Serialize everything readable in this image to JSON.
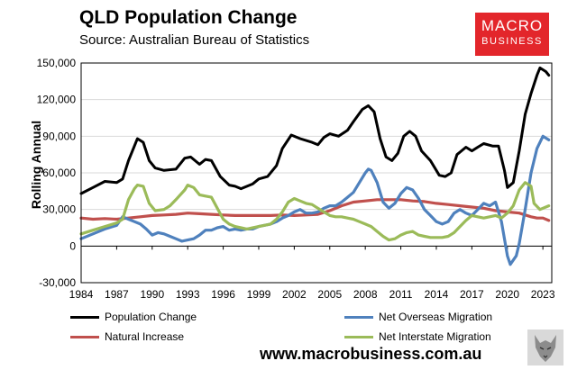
{
  "header": {
    "title": "QLD Population Change",
    "subtitle": "Source: Australian Bureau of Statistics"
  },
  "logo": {
    "line1": "MACRO",
    "line2": "BUSINESS"
  },
  "footer": {
    "website": "www.macrobusiness.com.au"
  },
  "chart_data": {
    "type": "line",
    "title": "QLD Population Change",
    "ylabel": "Rolling Annual",
    "xlabel": "",
    "xlim": [
      1984,
      2023.75
    ],
    "ylim": [
      -30000,
      150000
    ],
    "y_ticks": [
      -30000,
      0,
      30000,
      60000,
      90000,
      120000,
      150000
    ],
    "y_tick_labels": [
      "-30,000",
      "0",
      "30,000",
      "60,000",
      "90,000",
      "120,000",
      "150,000"
    ],
    "x_ticks": [
      1984,
      1987,
      1990,
      1993,
      1996,
      1999,
      2002,
      2005,
      2008,
      2011,
      2014,
      2017,
      2020,
      2023
    ],
    "x_tick_labels": [
      "1984",
      "1987",
      "1990",
      "1993",
      "1996",
      "1999",
      "2002",
      "2005",
      "2008",
      "2011",
      "2014",
      "2017",
      "2020",
      "2023"
    ],
    "grid": true,
    "legend_position": "bottom",
    "series": [
      {
        "name": "Population Change",
        "color": "#000000",
        "points": [
          [
            1984,
            43000
          ],
          [
            1985,
            48000
          ],
          [
            1986,
            53000
          ],
          [
            1987,
            52000
          ],
          [
            1987.5,
            55000
          ],
          [
            1988,
            70000
          ],
          [
            1988.5,
            82000
          ],
          [
            1988.75,
            88000
          ],
          [
            1989.25,
            85000
          ],
          [
            1989.75,
            70000
          ],
          [
            1990.25,
            64000
          ],
          [
            1991,
            62000
          ],
          [
            1992,
            63000
          ],
          [
            1992.75,
            72000
          ],
          [
            1993.25,
            73000
          ],
          [
            1994,
            67000
          ],
          [
            1994.5,
            71000
          ],
          [
            1995,
            70000
          ],
          [
            1995.75,
            57000
          ],
          [
            1996.5,
            50000
          ],
          [
            1997,
            49000
          ],
          [
            1997.5,
            47000
          ],
          [
            1998.5,
            51000
          ],
          [
            1999,
            55000
          ],
          [
            1999.75,
            57000
          ],
          [
            2000.5,
            66000
          ],
          [
            2001,
            80000
          ],
          [
            2001.75,
            91000
          ],
          [
            2002.5,
            88000
          ],
          [
            2003.5,
            85000
          ],
          [
            2004,
            83000
          ],
          [
            2004.5,
            89000
          ],
          [
            2005,
            92000
          ],
          [
            2005.75,
            90000
          ],
          [
            2006.5,
            95000
          ],
          [
            2007,
            102000
          ],
          [
            2007.75,
            112000
          ],
          [
            2008.25,
            115000
          ],
          [
            2008.75,
            110000
          ],
          [
            2009.25,
            88000
          ],
          [
            2009.75,
            73000
          ],
          [
            2010.25,
            70000
          ],
          [
            2010.75,
            76000
          ],
          [
            2011.25,
            90000
          ],
          [
            2011.75,
            94000
          ],
          [
            2012.25,
            90000
          ],
          [
            2012.75,
            78000
          ],
          [
            2013.5,
            70000
          ],
          [
            2014.25,
            58000
          ],
          [
            2014.75,
            57000
          ],
          [
            2015.25,
            60000
          ],
          [
            2015.75,
            75000
          ],
          [
            2016.5,
            81000
          ],
          [
            2017,
            78000
          ],
          [
            2017.5,
            81000
          ],
          [
            2018,
            84000
          ],
          [
            2018.75,
            82000
          ],
          [
            2019.25,
            82000
          ],
          [
            2019.75,
            62000
          ],
          [
            2020,
            48000
          ],
          [
            2020.5,
            52000
          ],
          [
            2021,
            78000
          ],
          [
            2021.5,
            108000
          ],
          [
            2022,
            125000
          ],
          [
            2022.5,
            140000
          ],
          [
            2022.75,
            146000
          ],
          [
            2023.25,
            143000
          ],
          [
            2023.5,
            140000
          ]
        ]
      },
      {
        "name": "Net Overseas Migration",
        "color": "#4f81bd",
        "points": [
          [
            1984,
            6000
          ],
          [
            1985,
            10000
          ],
          [
            1986,
            14000
          ],
          [
            1987,
            17000
          ],
          [
            1987.5,
            24000
          ],
          [
            1988,
            22000
          ],
          [
            1988.5,
            20000
          ],
          [
            1989,
            18000
          ],
          [
            1989.5,
            14000
          ],
          [
            1990,
            9000
          ],
          [
            1990.5,
            11000
          ],
          [
            1991,
            10000
          ],
          [
            1991.5,
            8000
          ],
          [
            1992,
            6000
          ],
          [
            1992.5,
            4000
          ],
          [
            1993,
            5000
          ],
          [
            1993.5,
            6000
          ],
          [
            1994,
            9000
          ],
          [
            1994.5,
            13000
          ],
          [
            1995,
            13000
          ],
          [
            1995.5,
            15000
          ],
          [
            1996,
            16000
          ],
          [
            1996.5,
            13000
          ],
          [
            1997,
            14000
          ],
          [
            1997.5,
            13000
          ],
          [
            1998,
            14000
          ],
          [
            1998.5,
            14000
          ],
          [
            1999,
            16000
          ],
          [
            2000,
            18000
          ],
          [
            2000.5,
            20000
          ],
          [
            2001,
            23000
          ],
          [
            2001.5,
            25000
          ],
          [
            2002,
            28000
          ],
          [
            2002.5,
            30000
          ],
          [
            2003,
            27000
          ],
          [
            2003.5,
            27000
          ],
          [
            2004,
            28000
          ],
          [
            2004.5,
            31000
          ],
          [
            2005,
            33000
          ],
          [
            2005.5,
            33000
          ],
          [
            2006,
            36000
          ],
          [
            2006.5,
            40000
          ],
          [
            2007,
            44000
          ],
          [
            2007.5,
            52000
          ],
          [
            2008,
            60000
          ],
          [
            2008.25,
            63000
          ],
          [
            2008.5,
            62000
          ],
          [
            2009,
            52000
          ],
          [
            2009.5,
            36000
          ],
          [
            2010,
            31000
          ],
          [
            2010.5,
            35000
          ],
          [
            2011,
            43000
          ],
          [
            2011.5,
            48000
          ],
          [
            2012,
            46000
          ],
          [
            2012.5,
            39000
          ],
          [
            2013,
            30000
          ],
          [
            2013.5,
            25000
          ],
          [
            2014,
            20000
          ],
          [
            2014.5,
            18000
          ],
          [
            2015,
            20000
          ],
          [
            2015.5,
            27000
          ],
          [
            2016,
            30000
          ],
          [
            2016.5,
            27000
          ],
          [
            2017,
            25000
          ],
          [
            2017.5,
            30000
          ],
          [
            2018,
            35000
          ],
          [
            2018.5,
            33000
          ],
          [
            2019,
            36000
          ],
          [
            2019.5,
            20000
          ],
          [
            2020,
            -8000
          ],
          [
            2020.25,
            -15000
          ],
          [
            2020.75,
            -8000
          ],
          [
            2021,
            2000
          ],
          [
            2021.5,
            30000
          ],
          [
            2022,
            60000
          ],
          [
            2022.5,
            80000
          ],
          [
            2023,
            90000
          ],
          [
            2023.5,
            87000
          ]
        ]
      },
      {
        "name": "Natural Increase",
        "color": "#c0504d",
        "points": [
          [
            1984,
            23000
          ],
          [
            1985,
            22000
          ],
          [
            1986,
            22500
          ],
          [
            1987,
            22000
          ],
          [
            1988,
            23000
          ],
          [
            1989,
            24000
          ],
          [
            1990,
            25000
          ],
          [
            1991,
            25500
          ],
          [
            1992,
            26000
          ],
          [
            1993,
            27000
          ],
          [
            1994,
            26500
          ],
          [
            1995,
            26000
          ],
          [
            1996,
            25500
          ],
          [
            1997,
            25000
          ],
          [
            1998,
            25000
          ],
          [
            1999,
            25000
          ],
          [
            2000,
            25000
          ],
          [
            2001,
            25500
          ],
          [
            2002,
            25000
          ],
          [
            2003,
            25500
          ],
          [
            2004,
            26000
          ],
          [
            2005,
            29000
          ],
          [
            2006,
            33000
          ],
          [
            2007,
            36000
          ],
          [
            2008,
            37000
          ],
          [
            2009,
            38000
          ],
          [
            2010,
            38000
          ],
          [
            2011,
            38000
          ],
          [
            2012,
            37000
          ],
          [
            2013,
            36500
          ],
          [
            2014,
            35000
          ],
          [
            2015,
            34000
          ],
          [
            2016,
            33000
          ],
          [
            2017,
            32000
          ],
          [
            2018,
            31000
          ],
          [
            2019,
            29000
          ],
          [
            2020,
            28000
          ],
          [
            2021,
            27000
          ],
          [
            2022,
            24000
          ],
          [
            2022.5,
            23000
          ],
          [
            2023,
            23000
          ],
          [
            2023.5,
            21000
          ]
        ]
      },
      {
        "name": "Net Interstate Migration",
        "color": "#9bbb59",
        "points": [
          [
            1984,
            10000
          ],
          [
            1985,
            13000
          ],
          [
            1986,
            16000
          ],
          [
            1987,
            19000
          ],
          [
            1987.5,
            22000
          ],
          [
            1988,
            38000
          ],
          [
            1988.5,
            47000
          ],
          [
            1988.75,
            50000
          ],
          [
            1989.25,
            49000
          ],
          [
            1989.75,
            35000
          ],
          [
            1990.25,
            29000
          ],
          [
            1991,
            30000
          ],
          [
            1991.5,
            33000
          ],
          [
            1992,
            38000
          ],
          [
            1992.75,
            46000
          ],
          [
            1993,
            50000
          ],
          [
            1993.5,
            48000
          ],
          [
            1994,
            42000
          ],
          [
            1994.5,
            41000
          ],
          [
            1995,
            40000
          ],
          [
            1995.5,
            31000
          ],
          [
            1996,
            22000
          ],
          [
            1996.5,
            18000
          ],
          [
            1997,
            16000
          ],
          [
            1997.5,
            15000
          ],
          [
            1998,
            14000
          ],
          [
            1998.5,
            15000
          ],
          [
            1999,
            16000
          ],
          [
            2000,
            18000
          ],
          [
            2000.5,
            22000
          ],
          [
            2001,
            28000
          ],
          [
            2001.5,
            36000
          ],
          [
            2002,
            39000
          ],
          [
            2002.5,
            37000
          ],
          [
            2003,
            35000
          ],
          [
            2003.5,
            34000
          ],
          [
            2004,
            31000
          ],
          [
            2004.5,
            28000
          ],
          [
            2005,
            25000
          ],
          [
            2005.5,
            24000
          ],
          [
            2006,
            24000
          ],
          [
            2006.5,
            23000
          ],
          [
            2007,
            22000
          ],
          [
            2007.5,
            20000
          ],
          [
            2008,
            18000
          ],
          [
            2008.5,
            16000
          ],
          [
            2009,
            12000
          ],
          [
            2009.5,
            8000
          ],
          [
            2010,
            5000
          ],
          [
            2010.5,
            6000
          ],
          [
            2011,
            9000
          ],
          [
            2011.5,
            11000
          ],
          [
            2012,
            12000
          ],
          [
            2012.5,
            9000
          ],
          [
            2013,
            8000
          ],
          [
            2013.5,
            7000
          ],
          [
            2014,
            7000
          ],
          [
            2014.5,
            7000
          ],
          [
            2015,
            8000
          ],
          [
            2015.5,
            11000
          ],
          [
            2016,
            16000
          ],
          [
            2016.5,
            21000
          ],
          [
            2017,
            25000
          ],
          [
            2017.5,
            24000
          ],
          [
            2018,
            23000
          ],
          [
            2018.5,
            24000
          ],
          [
            2019,
            25000
          ],
          [
            2019.5,
            23000
          ],
          [
            2020,
            27000
          ],
          [
            2020.5,
            33000
          ],
          [
            2021,
            46000
          ],
          [
            2021.5,
            52000
          ],
          [
            2022,
            49000
          ],
          [
            2022.25,
            35000
          ],
          [
            2022.75,
            30000
          ],
          [
            2023.25,
            32000
          ],
          [
            2023.5,
            33000
          ]
        ]
      }
    ]
  }
}
